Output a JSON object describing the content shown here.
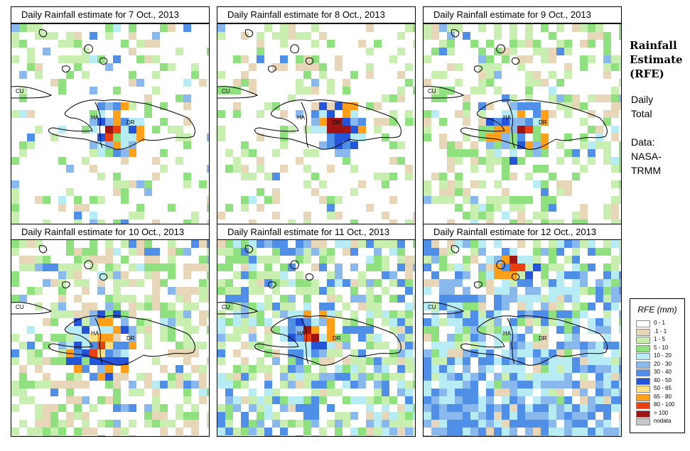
{
  "panels": [
    {
      "title": "Daily Rainfall estimate for  7 Oct., 2013"
    },
    {
      "title": "Daily Rainfall estimate for  8 Oct., 2013"
    },
    {
      "title": "Daily Rainfall estimate for  9 Oct., 2013"
    },
    {
      "title": "Daily Rainfall estimate for  10 Oct., 2013"
    },
    {
      "title": "Daily Rainfall estimate for  11 Oct., 2013"
    },
    {
      "title": "Daily Rainfall estimate for  12 Oct., 2013"
    }
  ],
  "map_labels": {
    "cu": "CU",
    "ha": "HA",
    "dr": "DR"
  },
  "sidebar": {
    "title_line1": "Rainfall",
    "title_line2": "Estimate",
    "title_line3": "(RFE)",
    "subtitle_line1": "Daily",
    "subtitle_line2": "Total",
    "source_line1": "Data:",
    "source_line2": "NASA-",
    "source_line3": "TRMM"
  },
  "legend": {
    "title": "RFE (mm)",
    "items": [
      {
        "label": "0 - 1",
        "color": "#ffffff"
      },
      {
        "label": ".1 - 1",
        "color": "#e7d6b8"
      },
      {
        "label": "1 - 5",
        "color": "#c8eeb0"
      },
      {
        "label": "5 - 10",
        "color": "#8fe07f"
      },
      {
        "label": "10 - 20",
        "color": "#b8ecf4"
      },
      {
        "label": "20 - 30",
        "color": "#88b8ec"
      },
      {
        "label": "30 - 40",
        "color": "#4f8fe8"
      },
      {
        "label": "40 - 50",
        "color": "#2455d8"
      },
      {
        "label": "50 - 65",
        "color": "#ffe082"
      },
      {
        "label": "65 - 80",
        "color": "#ff9f1a"
      },
      {
        "label": "80 - 100",
        "color": "#e84010"
      },
      {
        "label": "> 100",
        "color": "#a01414"
      },
      {
        "label": "nodata",
        "color": "#c8c8c8"
      }
    ]
  }
}
